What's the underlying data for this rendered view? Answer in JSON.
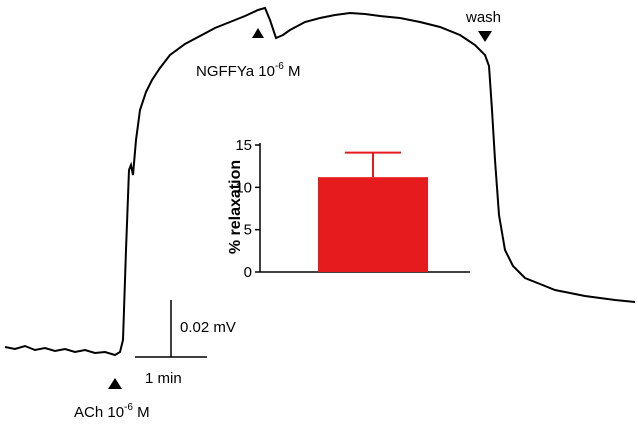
{
  "chart_data": {
    "type": "bar",
    "ylabel": "% relaxation",
    "categories": [
      null
    ],
    "values": [
      11.2
    ],
    "errors": [
      2.9
    ],
    "color": "#e51b1e",
    "ylim": [
      0,
      15
    ],
    "yticks": [
      0,
      5,
      10,
      15
    ],
    "annotations": [
      {
        "text": "NGFFYa 10",
        "sup": "-6",
        "suffix": " M"
      },
      {
        "text": "wash"
      },
      {
        "text": "ACh 10",
        "sup": "-6",
        "suffix": " M"
      }
    ],
    "scale_bars": [
      {
        "label": "0.02 mV"
      },
      {
        "label": "1 min"
      }
    ]
  }
}
